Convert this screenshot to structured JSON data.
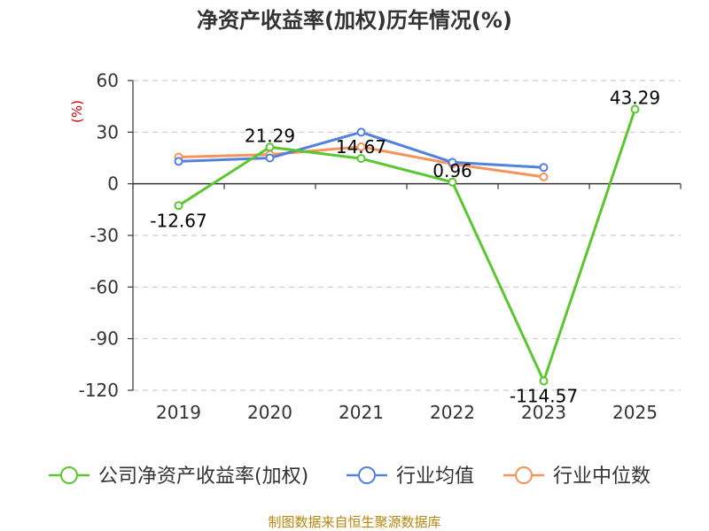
{
  "chart_data": {
    "type": "line",
    "title": "净资产收益率(加权)历年情况(%)",
    "unit_label": "(%)",
    "categories": [
      "2019",
      "2020",
      "2021",
      "2022",
      "2023",
      "2025"
    ],
    "yticks": [
      "60",
      "30",
      "0",
      "-30",
      "-60",
      "-90",
      "-120"
    ],
    "ylim": [
      -120,
      60
    ],
    "grid": true,
    "legend_position": "bottom",
    "series": [
      {
        "name": "公司净资产收益率(加权)",
        "color": "#5bc72e",
        "values": [
          -12.67,
          21.29,
          14.67,
          0.96,
          -114.57,
          43.29
        ],
        "labels": [
          "-12.67",
          "21.29",
          "14.67",
          "0.96",
          "-114.57",
          "43.29"
        ]
      },
      {
        "name": "行业均值",
        "color": "#5182e0",
        "values": [
          13.0,
          15.0,
          30.0,
          12.5,
          9.5,
          null
        ]
      },
      {
        "name": "行业中位数",
        "color": "#f5935a",
        "values": [
          15.5,
          17.0,
          21.5,
          11.5,
          4.0,
          null
        ]
      }
    ],
    "source": "制图数据来自恒生聚源数据库"
  }
}
